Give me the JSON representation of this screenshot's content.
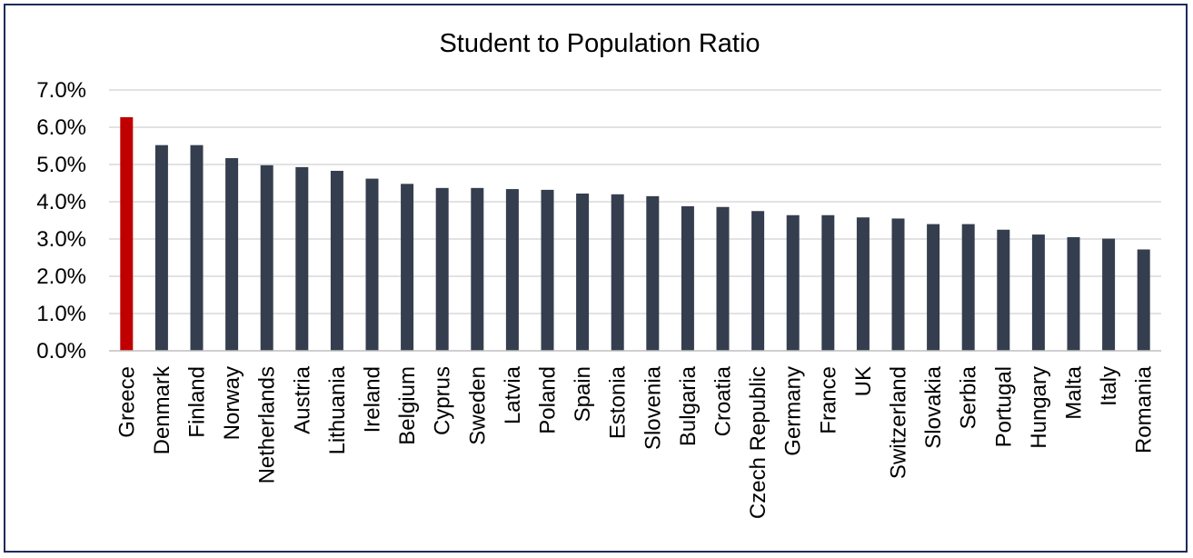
{
  "chart_data": {
    "type": "bar",
    "title": "Student to Population Ratio",
    "xlabel": "",
    "ylabel": "",
    "ylim": [
      0,
      7
    ],
    "y_ticks": [
      "0.0%",
      "1.0%",
      "2.0%",
      "3.0%",
      "4.0%",
      "5.0%",
      "6.0%",
      "7.0%"
    ],
    "grid": true,
    "legend": "none",
    "colors": {
      "default": "#353e4e",
      "highlight": "#c00000"
    },
    "highlight_category": "Greece",
    "categories": [
      "Greece",
      "Denmark",
      "Finland",
      "Norway",
      "Netherlands",
      "Austria",
      "Lithuania",
      "Ireland",
      "Belgium",
      "Cyprus",
      "Sweden",
      "Latvia",
      "Poland",
      "Spain",
      "Estonia",
      "Slovenia",
      "Bulgaria",
      "Croatia",
      "Czech Republic",
      "Germany",
      "France",
      "UK",
      "Switzerland",
      "Slovakia",
      "Serbia",
      "Portugal",
      "Hungary",
      "Malta",
      "Italy",
      "Romania"
    ],
    "values": [
      6.27,
      5.52,
      5.52,
      5.17,
      4.98,
      4.93,
      4.83,
      4.62,
      4.48,
      4.37,
      4.37,
      4.34,
      4.32,
      4.22,
      4.2,
      4.15,
      3.88,
      3.86,
      3.75,
      3.64,
      3.64,
      3.58,
      3.55,
      3.4,
      3.4,
      3.25,
      3.12,
      3.05,
      3.01,
      2.72
    ]
  }
}
